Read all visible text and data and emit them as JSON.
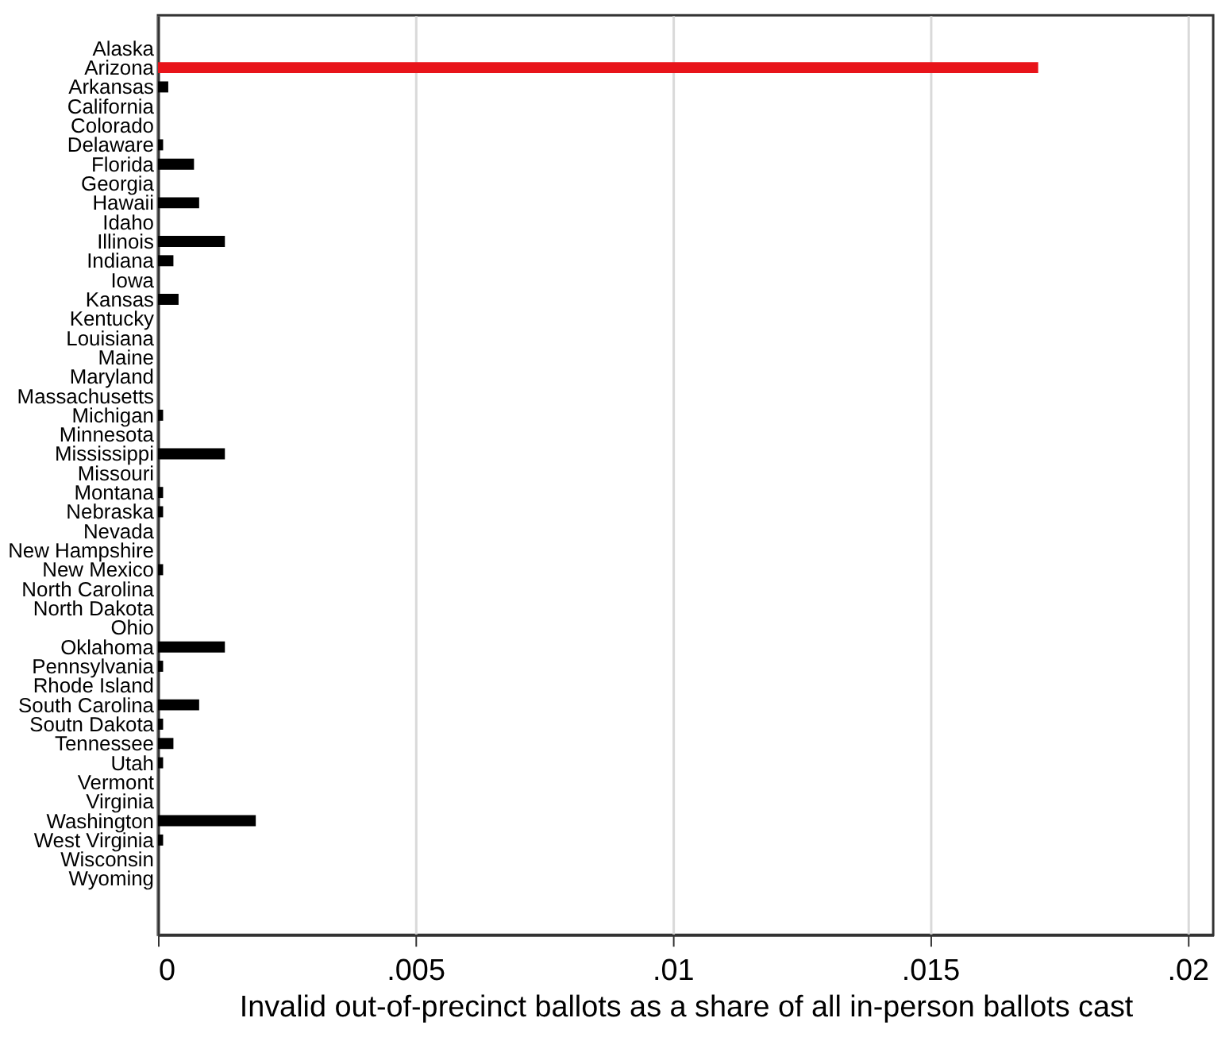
{
  "chart_data": {
    "type": "bar",
    "orientation": "horizontal",
    "xlabel": "Invalid out-of-precinct ballots as a share of all in-person ballots cast",
    "categories": [
      "Alaska",
      "Arizona",
      "Arkansas",
      "California",
      "Colorado",
      "Delaware",
      "Florida",
      "Georgia",
      "Hawaii",
      "Idaho",
      "Illinois",
      "Indiana",
      "Iowa",
      "Kansas",
      "Kentucky",
      "Louisiana",
      "Maine",
      "Maryland",
      "Massachusetts",
      "Michigan",
      "Minnesota",
      "Mississippi",
      "Missouri",
      "Montana",
      "Nebraska",
      "Nevada",
      "New Hampshire",
      "New Mexico",
      "North Carolina",
      "North Dakota",
      "Ohio",
      "Oklahoma",
      "Pennsylvania",
      "Rhode Island",
      "South Carolina",
      "Soutn Dakota",
      "Tennessee",
      "Utah",
      "Vermont",
      "Virginia",
      "Washington",
      "West Virginia",
      "Wisconsin",
      "Wyoming"
    ],
    "values": [
      0,
      0.0171,
      0.0002,
      0,
      0,
      0.0001,
      0.0007,
      0,
      0.0008,
      0,
      0.0013,
      0.0003,
      0,
      0.0004,
      0,
      0,
      0,
      0,
      0,
      0.0001,
      0,
      0.0013,
      0,
      0.0001,
      0.0001,
      0,
      0,
      0.0001,
      0,
      0,
      0,
      0.0013,
      0.0001,
      0,
      0.0008,
      0.0001,
      0.0003,
      0.0001,
      0,
      0,
      0.0019,
      0.0001,
      0,
      0
    ],
    "colors": [
      "#000000",
      "#e8141a",
      "#000000",
      "#000000",
      "#000000",
      "#000000",
      "#000000",
      "#000000",
      "#000000",
      "#000000",
      "#000000",
      "#000000",
      "#000000",
      "#000000",
      "#000000",
      "#000000",
      "#000000",
      "#000000",
      "#000000",
      "#000000",
      "#000000",
      "#000000",
      "#000000",
      "#000000",
      "#000000",
      "#000000",
      "#000000",
      "#000000",
      "#000000",
      "#000000",
      "#000000",
      "#000000",
      "#000000",
      "#000000",
      "#000000",
      "#000000",
      "#000000",
      "#000000",
      "#000000",
      "#000000",
      "#000000",
      "#000000",
      "#000000",
      "#000000"
    ],
    "xlim": [
      0,
      0.0205
    ],
    "xticks": [
      {
        "value": 0,
        "label": "0"
      },
      {
        "value": 0.005,
        "label": ".005"
      },
      {
        "value": 0.01,
        "label": ".01"
      },
      {
        "value": 0.015,
        "label": ".015"
      },
      {
        "value": 0.02,
        "label": ".02"
      }
    ],
    "grid": "x"
  }
}
